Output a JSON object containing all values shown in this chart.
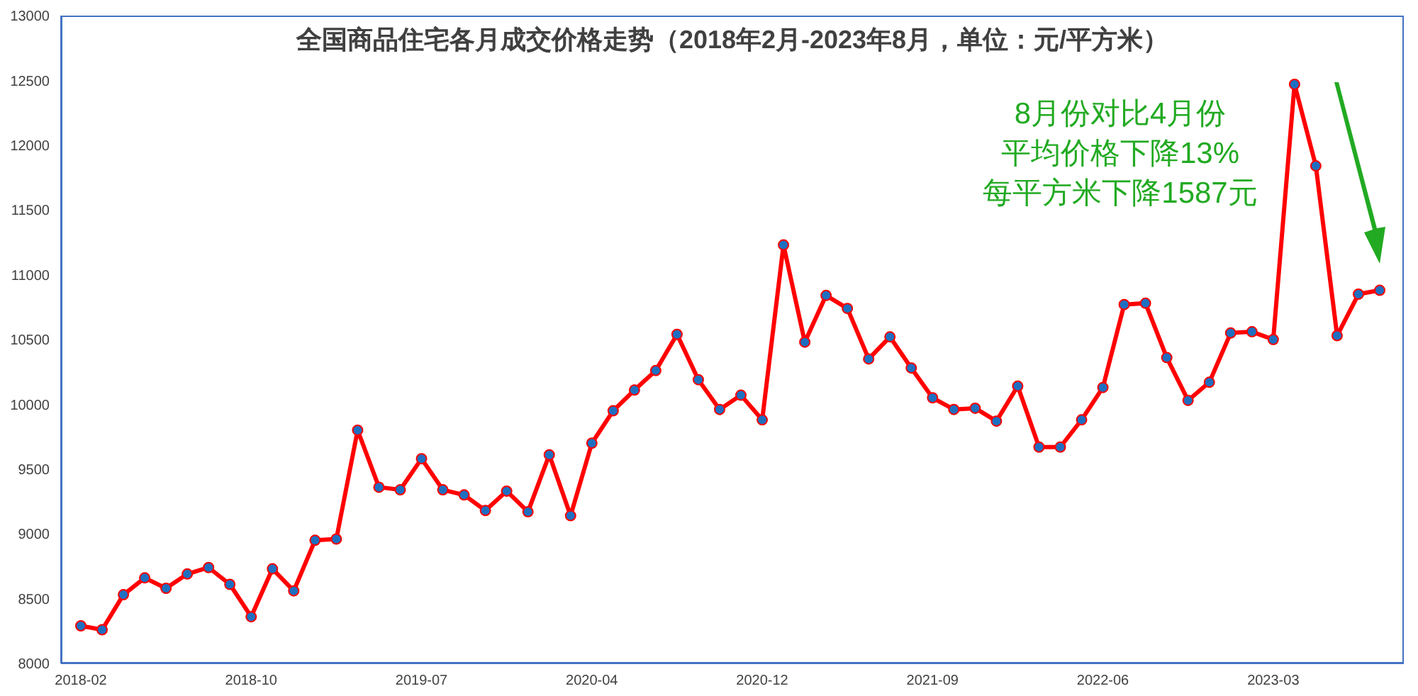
{
  "chart_data": {
    "type": "line",
    "title": "全国商品住宅各月成交价格走势（2018年2月-2023年8月，单位：元/平方米）",
    "categories": [
      "2018-02",
      null,
      null,
      null,
      null,
      null,
      null,
      null,
      "2018-10",
      null,
      null,
      null,
      null,
      null,
      null,
      null,
      "2019-07",
      null,
      null,
      null,
      null,
      null,
      null,
      null,
      "2020-04",
      null,
      null,
      null,
      null,
      null,
      null,
      null,
      "2020-12",
      null,
      null,
      null,
      null,
      null,
      null,
      null,
      "2021-09",
      null,
      null,
      null,
      null,
      null,
      null,
      null,
      "2022-06",
      null,
      null,
      null,
      null,
      null,
      null,
      null,
      "2023-03",
      null,
      null,
      null,
      null,
      null
    ],
    "series": [
      {
        "color": "#ff0000",
        "values": [
          8290,
          8260,
          8530,
          8660,
          8580,
          8690,
          8740,
          8610,
          8360,
          8730,
          8560,
          8950,
          8960,
          9800,
          9360,
          9340,
          9580,
          9340,
          9300,
          9180,
          9330,
          9170,
          9610,
          9140,
          9700,
          9950,
          10110,
          10260,
          10540,
          10190,
          9960,
          10070,
          9880,
          11230,
          10480,
          10840,
          10740,
          10350,
          10520,
          10280,
          10050,
          9960,
          9970,
          9870,
          10140,
          9670,
          9670,
          9880,
          10130,
          10770,
          10780,
          10360,
          10030,
          10170,
          10550,
          10560,
          10500,
          12470,
          11840,
          10530,
          10850,
          10880
        ]
      }
    ],
    "ylim": [
      8000,
      13000
    ],
    "yticks": [
      8000,
      8500,
      9000,
      9500,
      10000,
      10500,
      11000,
      11500,
      12000,
      12500,
      13000
    ],
    "grid": false,
    "legend": false,
    "marker": "circle",
    "line_style": "solid",
    "annotations": [
      "8月份对比4月份",
      "平均价格下降13%",
      "每平方米下降1587元"
    ]
  }
}
